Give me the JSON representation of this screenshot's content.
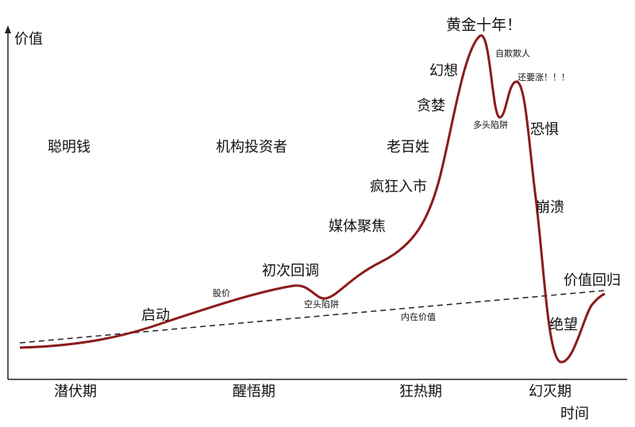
{
  "axes": {
    "y_label": "价值",
    "x_label": "时间"
  },
  "phases": [
    "潜伏期",
    "醒悟期",
    "狂热期",
    "幻灭期"
  ],
  "participants": [
    "聪明钱",
    "机构投资者",
    "老百姓"
  ],
  "curve_labels": {
    "price": "股价",
    "intrinsic_value": "内在价值"
  },
  "stages": [
    "启动",
    "初次回调",
    "空头陷阱",
    "媒体聚焦",
    "疯狂入市",
    "贪婪",
    "幻想",
    "黄金十年！",
    "自欺欺人",
    "多头陷阱",
    "还要涨！！！",
    "恐惧",
    "崩溃",
    "绝望",
    "价值回归"
  ]
}
